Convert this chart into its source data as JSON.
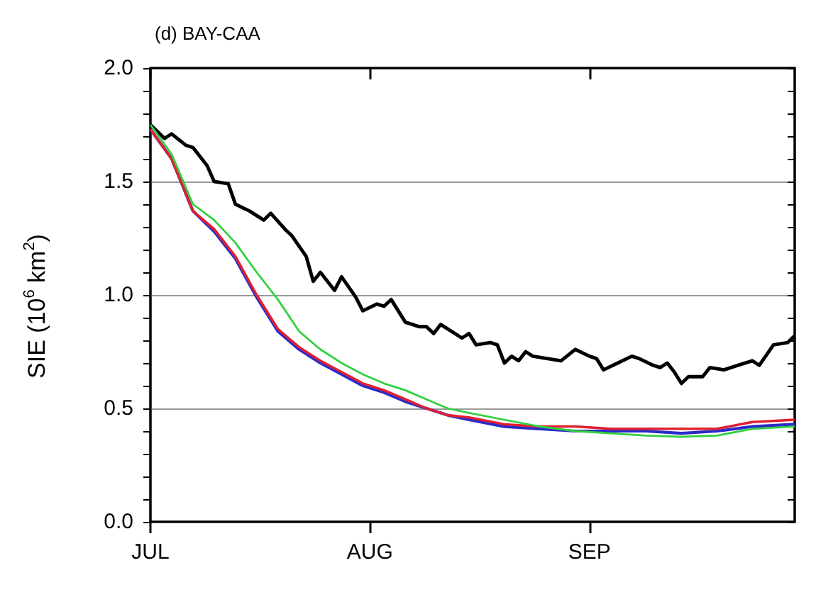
{
  "chart_data": {
    "type": "line",
    "title": "(d) BAY-CAA",
    "ylabel": "SIE (10$^{6}$ km$^{2}$)",
    "x": [
      "--07-01",
      "--07-04",
      "--07-07",
      "--07-10",
      "--07-13",
      "--07-16",
      "--07-19",
      "--07-22",
      "--07-25",
      "--07-28",
      "--07-31",
      "--08-03",
      "--08-06",
      "--08-09",
      "--08-12",
      "--08-15",
      "--08-20",
      "--08-25",
      "--08-30",
      "--09-04",
      "--09-09",
      "--09-14",
      "--09-19",
      "--09-24",
      "--09-30"
    ],
    "xlim": [
      "--07-01",
      "--09-30"
    ],
    "xticks": [
      {
        "value": "--07-01",
        "label": "JUL"
      },
      {
        "value": "--08-01",
        "label": "AUG"
      },
      {
        "value": "--09-01",
        "label": "SEP"
      }
    ],
    "ylim": [
      0,
      2
    ],
    "yticks": [
      {
        "value": 0,
        "label": "0.0"
      },
      {
        "value": 0.1,
        "label": null
      },
      {
        "value": 0.2,
        "label": null
      },
      {
        "value": 0.3,
        "label": null
      },
      {
        "value": 0.4,
        "label": null
      },
      {
        "value": 0.5,
        "label": "0.5"
      },
      {
        "value": 0.6,
        "label": null
      },
      {
        "value": 0.7,
        "label": null
      },
      {
        "value": 0.8,
        "label": null
      },
      {
        "value": 0.9,
        "label": null
      },
      {
        "value": 1,
        "label": "1.0"
      },
      {
        "value": 1.1,
        "label": null
      },
      {
        "value": 1.2,
        "label": null
      },
      {
        "value": 1.3,
        "label": null
      },
      {
        "value": 1.4,
        "label": null
      },
      {
        "value": 1.5,
        "label": "1.5"
      },
      {
        "value": 1.6,
        "label": null
      },
      {
        "value": 1.7,
        "label": null
      },
      {
        "value": 1.8,
        "label": null
      },
      {
        "value": 1.9,
        "label": null
      },
      {
        "value": 2,
        "label": "2.0"
      }
    ],
    "grid": "y",
    "marker": "none",
    "line_style": "solid",
    "series": [
      {
        "color": "#000000",
        "x": [
          "--07-01",
          "--07-03",
          "--07-04",
          "--07-06",
          "--07-07",
          "--07-09",
          "--07-10",
          "--07-12",
          "--07-13",
          "--07-15",
          "--07-17",
          "--07-18",
          "--07-20",
          "--07-21",
          "--07-23",
          "--07-24",
          "--07-25",
          "--07-27",
          "--07-28",
          "--07-30",
          "--07-31",
          "--08-02",
          "--08-03",
          "--08-04",
          "--08-06",
          "--08-08",
          "--08-09",
          "--08-10",
          "--08-11",
          "--08-14",
          "--08-15",
          "--08-16",
          "--08-18",
          "--08-19",
          "--08-20",
          "--08-21",
          "--08-22",
          "--08-23",
          "--08-24",
          "--08-28",
          "--08-30",
          "--09-01",
          "--09-02",
          "--09-03",
          "--09-05",
          "--09-07",
          "--09-08",
          "--09-10",
          "--09-11",
          "--09-12",
          "--09-13",
          "--09-14",
          "--09-15",
          "--09-17",
          "--09-18",
          "--09-20",
          "--09-22",
          "--09-24",
          "--09-25",
          "--09-27",
          "--09-29",
          "--09-30"
        ],
        "values": [
          1.75,
          1.69,
          1.71,
          1.66,
          1.65,
          1.57,
          1.5,
          1.49,
          1.4,
          1.37,
          1.33,
          1.36,
          1.29,
          1.26,
          1.17,
          1.06,
          1.1,
          1.02,
          1.08,
          0.99,
          0.93,
          0.96,
          0.95,
          0.98,
          0.88,
          0.86,
          0.86,
          0.83,
          0.87,
          0.81,
          0.83,
          0.78,
          0.79,
          0.78,
          0.7,
          0.73,
          0.71,
          0.75,
          0.73,
          0.71,
          0.76,
          0.73,
          0.72,
          0.67,
          0.7,
          0.73,
          0.72,
          0.69,
          0.68,
          0.7,
          0.66,
          0.61,
          0.64,
          0.64,
          0.68,
          0.67,
          0.69,
          0.71,
          0.69,
          0.78,
          0.79,
          0.82
        ]
      },
      {
        "color": "#2b2bc8",
        "values": [
          1.73,
          1.6,
          1.37,
          1.28,
          1.16,
          0.99,
          0.84,
          0.76,
          0.7,
          0.65,
          0.6,
          0.57,
          0.53,
          0.5,
          0.47,
          0.45,
          0.42,
          0.41,
          0.4,
          0.4,
          0.4,
          0.39,
          0.4,
          0.42,
          0.43
        ]
      },
      {
        "color": "#e02030",
        "values": [
          1.73,
          1.6,
          1.37,
          1.29,
          1.17,
          1.0,
          0.85,
          0.77,
          0.71,
          0.66,
          0.61,
          0.58,
          0.54,
          0.5,
          0.47,
          0.46,
          0.43,
          0.42,
          0.42,
          0.41,
          0.41,
          0.41,
          0.41,
          0.44,
          0.45
        ]
      },
      {
        "color": "#33d040",
        "values": [
          1.75,
          1.62,
          1.4,
          1.33,
          1.23,
          1.1,
          0.98,
          0.84,
          0.76,
          0.7,
          0.65,
          0.61,
          0.58,
          0.54,
          0.5,
          0.48,
          0.45,
          0.42,
          0.4,
          0.39,
          0.38,
          0.375,
          0.38,
          0.41,
          0.42
        ]
      }
    ]
  }
}
